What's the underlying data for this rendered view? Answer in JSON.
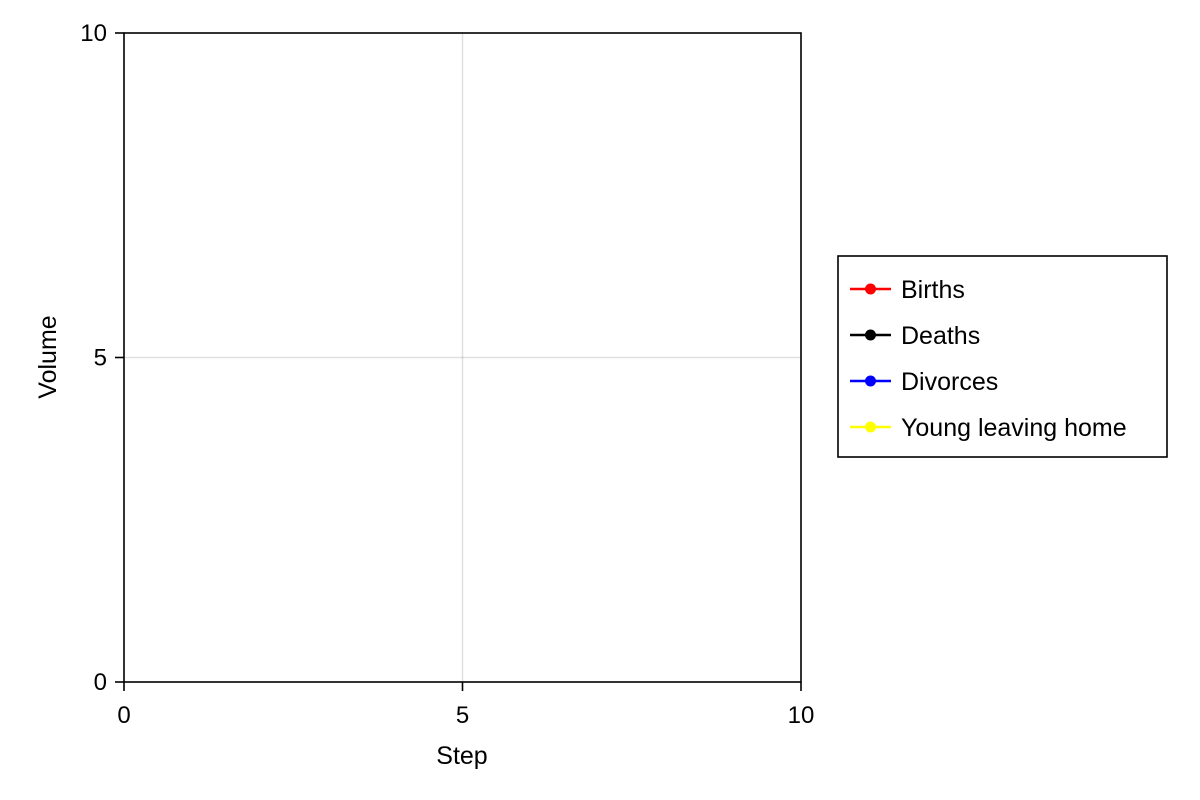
{
  "chart_data": {
    "type": "line",
    "title": "",
    "xlabel": "Step",
    "ylabel": "Volume",
    "xlim": [
      0,
      10
    ],
    "ylim": [
      0,
      10
    ],
    "xticks": [
      0,
      5,
      10
    ],
    "yticks": [
      0,
      5,
      10
    ],
    "xtick_labels": [
      "0",
      "5",
      "10"
    ],
    "ytick_labels": [
      "0",
      "5",
      "10"
    ],
    "grid": true,
    "legend_position": "right",
    "series": [
      {
        "name": "Births",
        "color": "#ff0000",
        "x": [],
        "y": []
      },
      {
        "name": "Deaths",
        "color": "#000000",
        "x": [],
        "y": []
      },
      {
        "name": "Divorces",
        "color": "#0000ff",
        "x": [],
        "y": []
      },
      {
        "name": "Young leaving home",
        "color": "#ffff00",
        "x": [],
        "y": []
      }
    ]
  }
}
